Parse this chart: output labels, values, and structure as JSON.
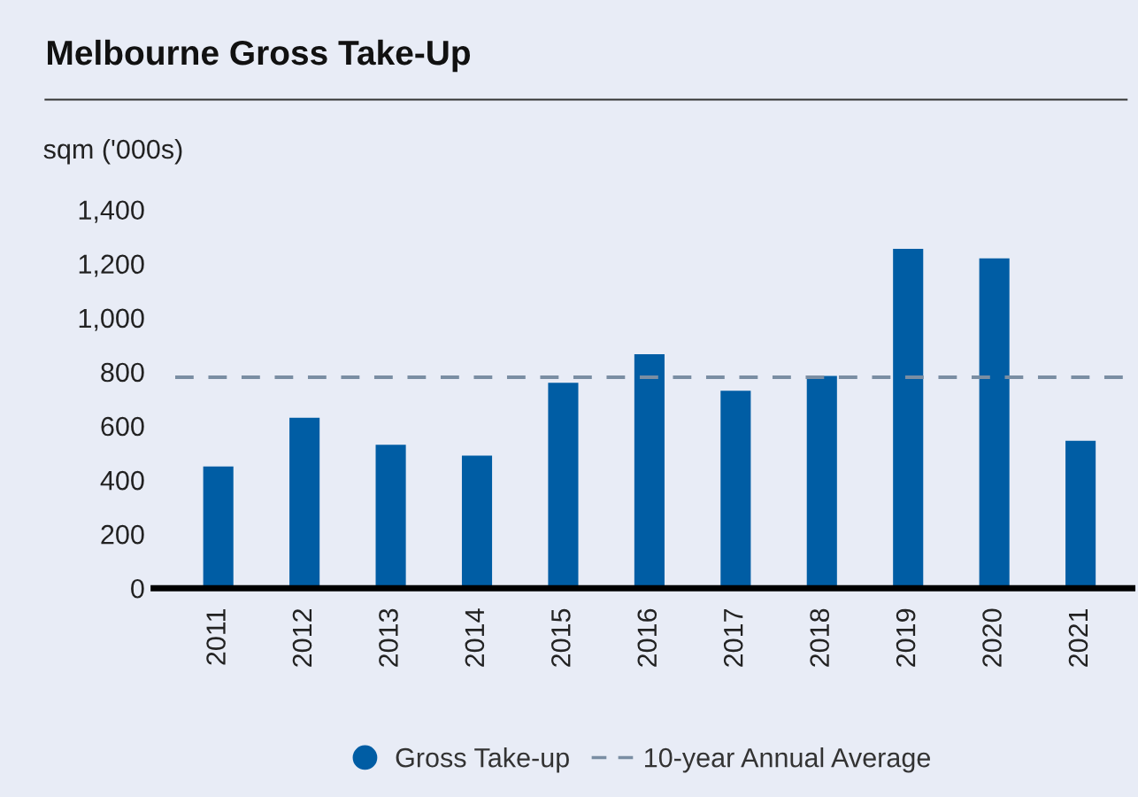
{
  "chart_data": {
    "type": "bar",
    "title": "Melbourne Gross Take-Up",
    "ylabel": "sqm ('000s)",
    "categories": [
      "2011",
      "2012",
      "2013",
      "2014",
      "2015",
      "2016",
      "2017",
      "2018",
      "2019",
      "2020",
      "2021"
    ],
    "series": [
      {
        "name": "Gross Take-up",
        "color": "#005da4",
        "values": [
          450,
          630,
          530,
          490,
          760,
          865,
          730,
          785,
          1255,
          1220,
          545
        ]
      }
    ],
    "ref_lines": [
      {
        "axis": "y",
        "value": 780,
        "label": "10-year Annual Average",
        "color": "#7a8ea3",
        "line_style": "dashed"
      }
    ],
    "ylim": [
      0,
      1400
    ],
    "yticks": [
      0,
      {
        "value": 200,
        "label": "200"
      },
      {
        "value": 400,
        "label": "400"
      },
      {
        "value": 600,
        "label": "600"
      },
      {
        "value": 800,
        "label": "800"
      },
      {
        "value": 1000,
        "label": "1,000"
      },
      {
        "value": 1200,
        "label": "1,200"
      },
      {
        "value": 1400,
        "label": "1,400"
      }
    ],
    "grid": false,
    "legend": "bottom"
  }
}
